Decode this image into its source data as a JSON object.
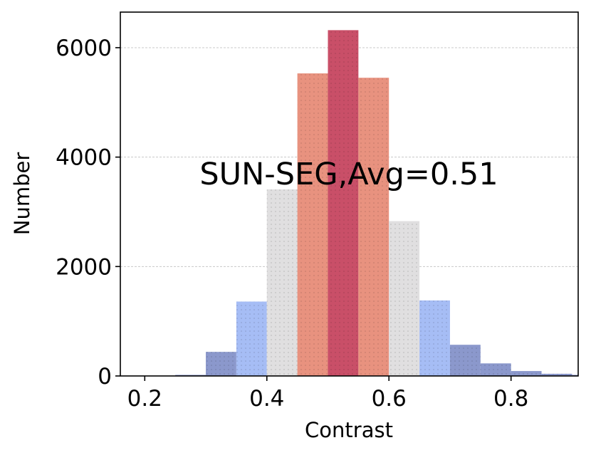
{
  "chart_data": {
    "type": "bar",
    "xlabel": "Contrast",
    "ylabel": "Number",
    "annotation": "SUN-SEG,Avg=0.51",
    "xlim": [
      0.16,
      0.91
    ],
    "ylim": [
      0,
      6650
    ],
    "xticks": [
      {
        "value": 0.2,
        "label": "0.2"
      },
      {
        "value": 0.4,
        "label": "0.4"
      },
      {
        "value": 0.6,
        "label": "0.6"
      },
      {
        "value": 0.8,
        "label": "0.8"
      }
    ],
    "yticks": [
      {
        "value": 0,
        "label": "0"
      },
      {
        "value": 2000,
        "label": "2000"
      },
      {
        "value": 4000,
        "label": "4000"
      },
      {
        "value": 6000,
        "label": "6000"
      }
    ],
    "grid": "horizontal-dashed",
    "bin_width": 0.05,
    "bins": [
      {
        "x": 0.225,
        "value": 5,
        "color": "#8b98cc"
      },
      {
        "x": 0.275,
        "value": 20,
        "color": "#8b98cc"
      },
      {
        "x": 0.325,
        "value": 440,
        "color": "#8b98cc"
      },
      {
        "x": 0.375,
        "value": 1360,
        "color": "#a6bdf5"
      },
      {
        "x": 0.425,
        "value": 3410,
        "color": "#e0dfe0"
      },
      {
        "x": 0.475,
        "value": 5530,
        "color": "#e8927f"
      },
      {
        "x": 0.525,
        "value": 6320,
        "color": "#c94f68"
      },
      {
        "x": 0.575,
        "value": 5450,
        "color": "#e8927f"
      },
      {
        "x": 0.625,
        "value": 2830,
        "color": "#e0dfe0"
      },
      {
        "x": 0.675,
        "value": 1380,
        "color": "#a6bdf5"
      },
      {
        "x": 0.725,
        "value": 570,
        "color": "#8b98cc"
      },
      {
        "x": 0.775,
        "value": 230,
        "color": "#8b98cc"
      },
      {
        "x": 0.825,
        "value": 90,
        "color": "#8b98cc"
      },
      {
        "x": 0.875,
        "value": 40,
        "color": "#8b98cc"
      },
      {
        "x": 0.925,
        "value": 20,
        "color": "#8b98cc"
      }
    ]
  }
}
